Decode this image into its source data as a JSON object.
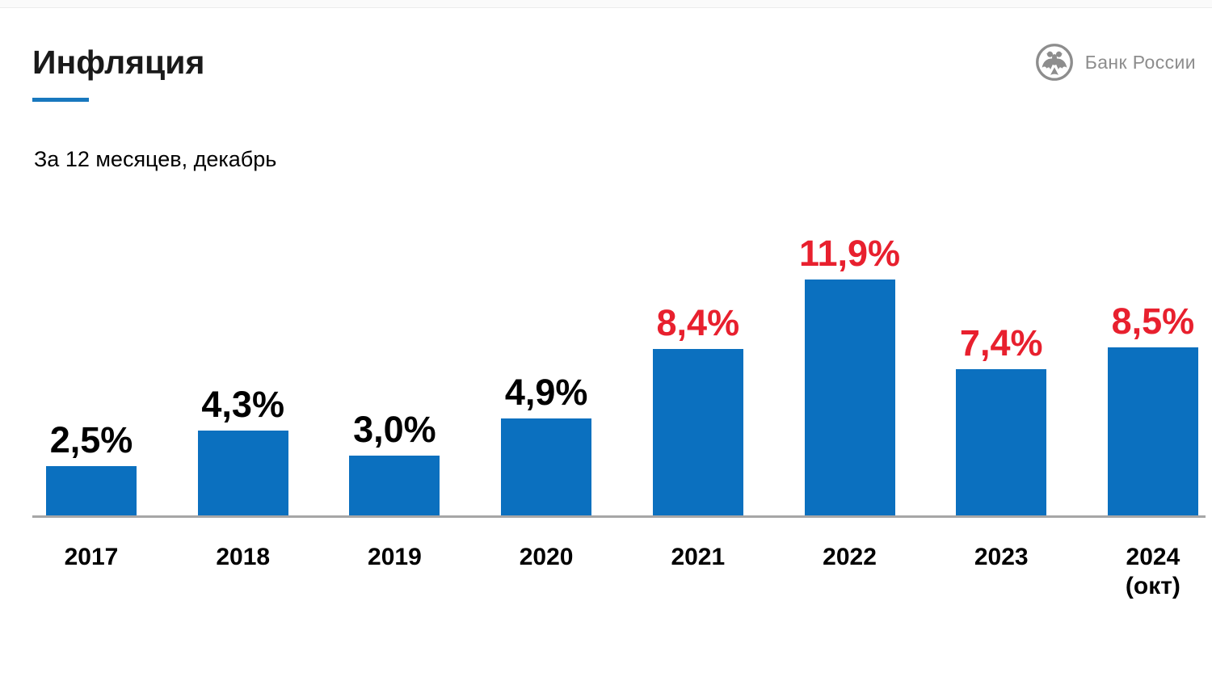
{
  "page": {
    "title": "Инфляция",
    "subtitle": "За 12 месяцев, декабрь",
    "logo_text": "Банк России"
  },
  "colors": {
    "bar": "#0b70bf",
    "title_underline": "#1878be",
    "value_normal": "#000000",
    "value_emphasis": "#e8202e",
    "axis_line": "#a6a6a6",
    "logo_gray": "#8d8d8d"
  },
  "chart_data": {
    "type": "bar",
    "title": "Инфляция",
    "subtitle": "За 12 месяцев, декабрь",
    "unit": "percent",
    "ylim": [
      0,
      12.5
    ],
    "grid": false,
    "legend": false,
    "value_label_position": "above-bar",
    "categories": [
      "2017",
      "2018",
      "2019",
      "2020",
      "2021",
      "2022",
      "2023",
      "2024 (окт)"
    ],
    "values": [
      2.5,
      4.3,
      3.0,
      4.9,
      8.4,
      11.9,
      7.4,
      8.5
    ],
    "points": [
      {
        "year": "2017",
        "year_note": "",
        "label": "2,5%",
        "value": 2.5,
        "emphasis": false
      },
      {
        "year": "2018",
        "year_note": "",
        "label": "4,3%",
        "value": 4.3,
        "emphasis": false
      },
      {
        "year": "2019",
        "year_note": "",
        "label": "3,0%",
        "value": 3.0,
        "emphasis": false
      },
      {
        "year": "2020",
        "year_note": "",
        "label": "4,9%",
        "value": 4.9,
        "emphasis": false
      },
      {
        "year": "2021",
        "year_note": "",
        "label": "8,4%",
        "value": 8.4,
        "emphasis": true
      },
      {
        "year": "2022",
        "year_note": "",
        "label": "11,9%",
        "value": 11.9,
        "emphasis": true
      },
      {
        "year": "2023",
        "year_note": "",
        "label": "7,4%",
        "value": 7.4,
        "emphasis": true
      },
      {
        "year": "2024",
        "year_note": "(окт)",
        "label": "8,5%",
        "value": 8.5,
        "emphasis": true
      }
    ]
  }
}
